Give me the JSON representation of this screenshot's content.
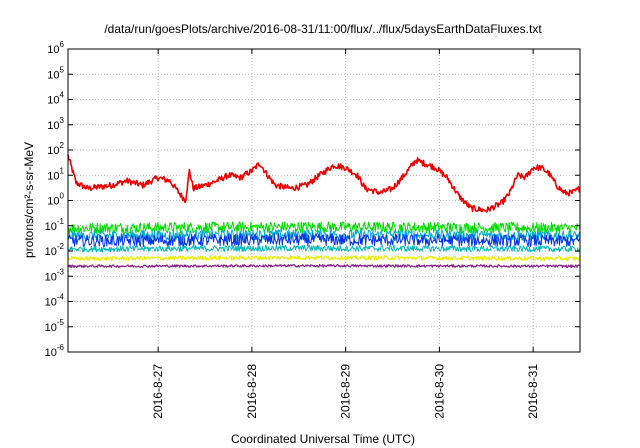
{
  "chart_data": {
    "type": "line",
    "title": "/data/run/goesPlots/archive/2016-08-31/11:00/flux/../flux/5daysEarthDataFluxes.txt",
    "xlabel": "Coordinated Universal Time (UTC)",
    "ylabel": "protons/cm²-s-sr-MeV",
    "yscale": "log",
    "ylim": [
      1e-06,
      1000000.0
    ],
    "xlim": [
      "2016-08-26T00:55",
      "2016-08-31T12:00"
    ],
    "grid": true,
    "yticks": [
      {
        "base": "10",
        "exp": "-6"
      },
      {
        "base": "10",
        "exp": "-5"
      },
      {
        "base": "10",
        "exp": "-4"
      },
      {
        "base": "10",
        "exp": "-3"
      },
      {
        "base": "10",
        "exp": "-2"
      },
      {
        "base": "10",
        "exp": "-1"
      },
      {
        "base": "10",
        "exp": "0"
      },
      {
        "base": "10",
        "exp": "1"
      },
      {
        "base": "10",
        "exp": "2"
      },
      {
        "base": "10",
        "exp": "3"
      },
      {
        "base": "10",
        "exp": "4"
      },
      {
        "base": "10",
        "exp": "5"
      },
      {
        "base": "10",
        "exp": "6"
      }
    ],
    "xticks": [
      {
        "label": "2016-8-27",
        "day": 27
      },
      {
        "label": "2016-8-28",
        "day": 28
      },
      {
        "label": "2016-8-29",
        "day": 29
      },
      {
        "label": "2016-8-30",
        "day": 30
      },
      {
        "label": "2016-8-31",
        "day": 31
      }
    ],
    "series": [
      {
        "color": "#ee0000",
        "width": 1.6,
        "jitter": 0.12,
        "points": [
          [
            "2016-08-26T00:55",
            60
          ],
          [
            "2016-08-26T03:00",
            5
          ],
          [
            "2016-08-26T06:00",
            3
          ],
          [
            "2016-08-26T12:00",
            4
          ],
          [
            "2016-08-26T16:00",
            6
          ],
          [
            "2016-08-26T20:00",
            4
          ],
          [
            "2016-08-27T00:00",
            8
          ],
          [
            "2016-08-27T03:00",
            6
          ],
          [
            "2016-08-27T06:00",
            1.5
          ],
          [
            "2016-08-27T07:00",
            1.0
          ],
          [
            "2016-08-27T08:00",
            15
          ],
          [
            "2016-08-27T09:00",
            3
          ],
          [
            "2016-08-27T12:00",
            4
          ],
          [
            "2016-08-27T15:00",
            6
          ],
          [
            "2016-08-27T18:00",
            10
          ],
          [
            "2016-08-27T21:00",
            8
          ],
          [
            "2016-08-28T00:00",
            15
          ],
          [
            "2016-08-28T02:00",
            30
          ],
          [
            "2016-08-28T04:00",
            10
          ],
          [
            "2016-08-28T06:00",
            4
          ],
          [
            "2016-08-28T10:00",
            3
          ],
          [
            "2016-08-28T14:00",
            4
          ],
          [
            "2016-08-28T18:00",
            12
          ],
          [
            "2016-08-28T21:00",
            25
          ],
          [
            "2016-08-29T00:00",
            20
          ],
          [
            "2016-08-29T03:00",
            10
          ],
          [
            "2016-08-29T05:00",
            3
          ],
          [
            "2016-08-29T09:00",
            2
          ],
          [
            "2016-08-29T12:00",
            3
          ],
          [
            "2016-08-29T15:00",
            10
          ],
          [
            "2016-08-29T18:00",
            40
          ],
          [
            "2016-08-29T20:00",
            30
          ],
          [
            "2016-08-29T23:00",
            20
          ],
          [
            "2016-08-30T02:00",
            8
          ],
          [
            "2016-08-30T05:00",
            1.5
          ],
          [
            "2016-08-30T08:00",
            0.5
          ],
          [
            "2016-08-30T12:00",
            0.4
          ],
          [
            "2016-08-30T16:00",
            0.8
          ],
          [
            "2016-08-30T18:00",
            2
          ],
          [
            "2016-08-30T20:00",
            10
          ],
          [
            "2016-08-30T22:00",
            8
          ],
          [
            "2016-08-31T00:00",
            20
          ],
          [
            "2016-08-31T02:00",
            20
          ],
          [
            "2016-08-31T04:00",
            12
          ],
          [
            "2016-08-31T06:00",
            4
          ],
          [
            "2016-08-31T08:00",
            2
          ],
          [
            "2016-08-31T10:00",
            2
          ],
          [
            "2016-08-31T12:00",
            3
          ]
        ]
      },
      {
        "color": "#00dd00",
        "width": 1,
        "jitter": 0.22,
        "points": [
          [
            "2016-08-26T00:55",
            0.08
          ],
          [
            "2016-08-28T12:00",
            0.09
          ],
          [
            "2016-08-31T12:00",
            0.08
          ]
        ]
      },
      {
        "color": "#00aacc",
        "width": 1,
        "jitter": 0.2,
        "points": [
          [
            "2016-08-26T00:55",
            0.04
          ],
          [
            "2016-08-28T12:00",
            0.045
          ],
          [
            "2016-08-31T12:00",
            0.04
          ]
        ]
      },
      {
        "color": "#0033ee",
        "width": 1,
        "jitter": 0.24,
        "points": [
          [
            "2016-08-26T00:55",
            0.025
          ],
          [
            "2016-08-28T12:00",
            0.028
          ],
          [
            "2016-08-31T12:00",
            0.025
          ]
        ]
      },
      {
        "color": "#00bbbb",
        "width": 1,
        "jitter": 0.12,
        "points": [
          [
            "2016-08-26T00:55",
            0.012
          ],
          [
            "2016-08-28T12:00",
            0.013
          ],
          [
            "2016-08-31T12:00",
            0.012
          ]
        ]
      },
      {
        "color": "#eeee00",
        "width": 1.2,
        "jitter": 0.08,
        "points": [
          [
            "2016-08-26T00:55",
            0.005
          ],
          [
            "2016-08-28T12:00",
            0.0055
          ],
          [
            "2016-08-31T12:00",
            0.005
          ]
        ]
      },
      {
        "color": "#882288",
        "width": 1.2,
        "jitter": 0.05,
        "points": [
          [
            "2016-08-26T00:55",
            0.0025
          ],
          [
            "2016-08-28T12:00",
            0.0026
          ],
          [
            "2016-08-31T12:00",
            0.0025
          ]
        ]
      }
    ]
  }
}
